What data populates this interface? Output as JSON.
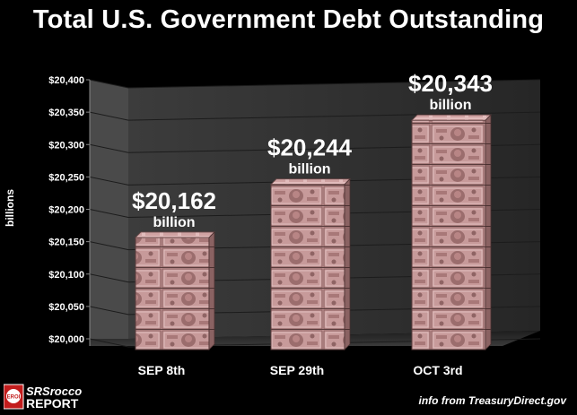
{
  "colors": {
    "background": "#000000",
    "text": "#ffffff",
    "wall": "#3a3a3a",
    "grid": "#2a2a2a",
    "bar_face": "#cfa2a2",
    "bar_dark": "#7e5a5a",
    "bar_light": "#e8c7c7",
    "logo_red": "#c21d1d"
  },
  "chart_data": {
    "type": "bar",
    "title": "Total U.S. Government Debt Outstanding",
    "ylabel": "billions",
    "xlabel": "",
    "categories": [
      "SEP 8th",
      "SEP 29th",
      "OCT 3rd"
    ],
    "values": [
      20162,
      20244,
      20343
    ],
    "data_labels": [
      {
        "amount": "$20,162",
        "unit": "billion"
      },
      {
        "amount": "$20,244",
        "unit": "billion"
      },
      {
        "amount": "$20,343",
        "unit": "billion"
      }
    ],
    "ylim": [
      20000,
      20400
    ],
    "yticks": [
      20000,
      20050,
      20100,
      20150,
      20200,
      20250,
      20300,
      20350,
      20400
    ],
    "ytick_labels": [
      "$20,000",
      "$20,050",
      "$20,100",
      "$20,150",
      "$20,200",
      "$20,250",
      "$20,300",
      "$20,350",
      "$20,400"
    ],
    "grid": true,
    "legend": "none",
    "style": "3d-bars-textured-banknotes"
  },
  "logo": {
    "badge_text": "EROI",
    "line1": "SRSrocco",
    "line2": "REPORT"
  },
  "source_note": "info from TreasuryDirect.gov"
}
